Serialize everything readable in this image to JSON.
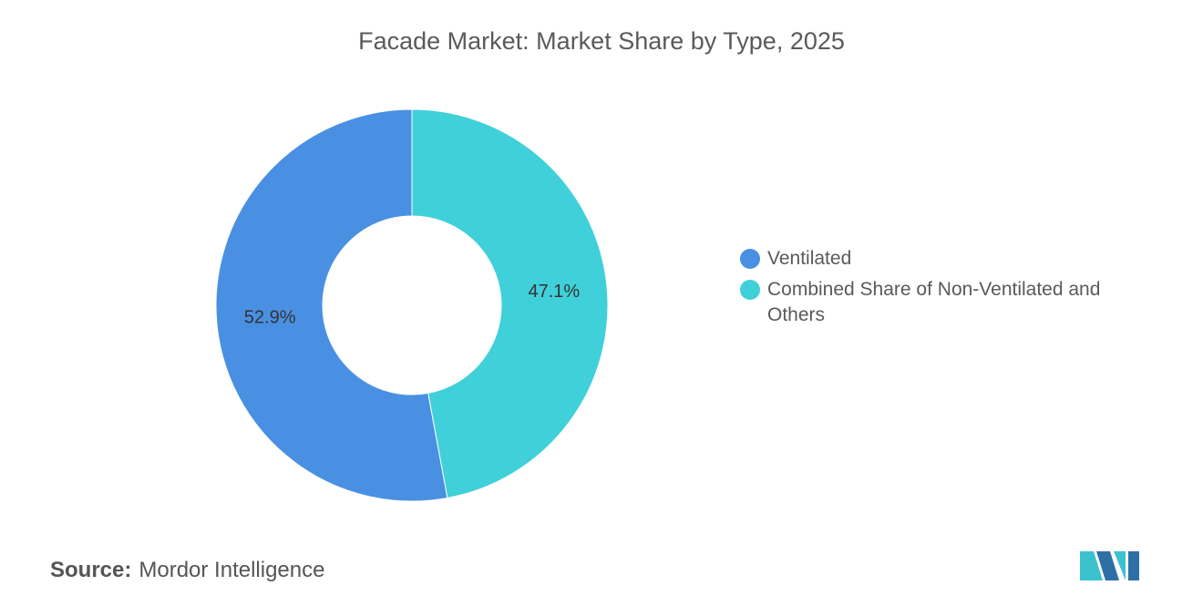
{
  "chart_data": {
    "type": "pie",
    "title": "Facade Market: Market Share by Type, 2025",
    "categories": [
      "Ventilated",
      "Combined Share of Non-Ventilated and Others"
    ],
    "values": [
      52.9,
      47.1
    ],
    "value_labels": [
      "52.9%",
      "47.1%"
    ],
    "colors": [
      "#4a90e2",
      "#40d0da"
    ],
    "donut": true
  },
  "source_label": "Source:",
  "source": "Mordor Intelligence"
}
